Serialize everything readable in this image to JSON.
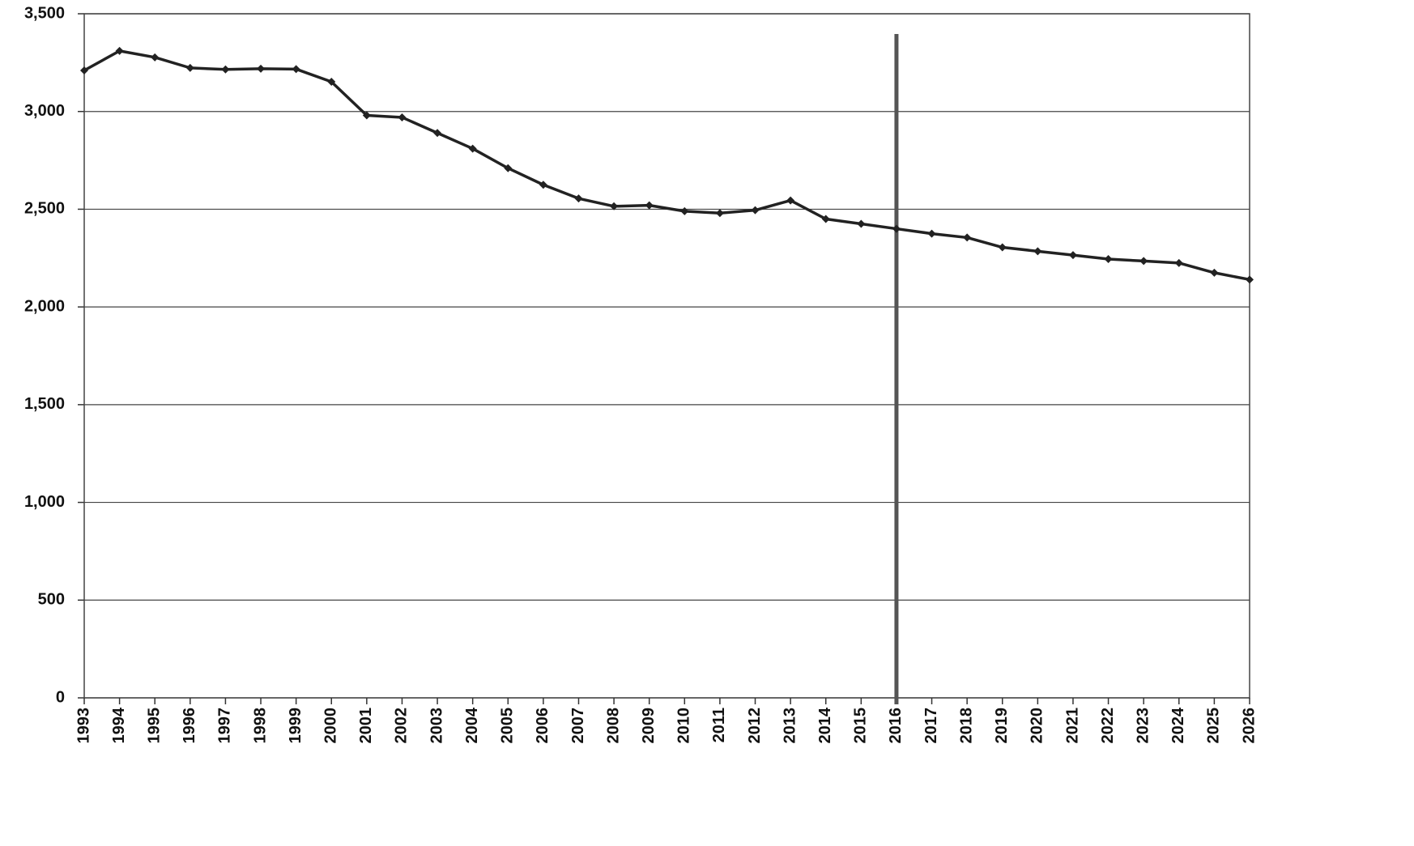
{
  "chart_data": {
    "type": "line",
    "x": [
      1993,
      1994,
      1995,
      1996,
      1997,
      1998,
      1999,
      2000,
      2001,
      2002,
      2003,
      2004,
      2005,
      2006,
      2007,
      2008,
      2009,
      2010,
      2011,
      2012,
      2013,
      2014,
      2015,
      2016,
      2017,
      2018,
      2019,
      2020,
      2021,
      2022,
      2023,
      2024,
      2025,
      2026
    ],
    "series": [
      {
        "color": "#222222",
        "values": [
          3210,
          3310,
          3277,
          3223,
          3215,
          3219,
          3217,
          3152,
          2980,
          2970,
          2890,
          2810,
          2710,
          2625,
          2555,
          2515,
          2520,
          2490,
          2480,
          2495,
          2545,
          2450,
          2425,
          2400,
          2375,
          2355,
          2305,
          2285,
          2265,
          2245,
          2235,
          2225,
          2175,
          2140
        ]
      }
    ],
    "xlim": [
      1993,
      2026
    ],
    "xticks": [
      1993,
      1994,
      1995,
      1996,
      1997,
      1998,
      1999,
      2000,
      2001,
      2002,
      2003,
      2004,
      2005,
      2006,
      2007,
      2008,
      2009,
      2010,
      2011,
      2012,
      2013,
      2014,
      2015,
      2016,
      2017,
      2018,
      2019,
      2020,
      2021,
      2022,
      2023,
      2024,
      2025,
      2026
    ],
    "ylim": [
      0,
      3500
    ],
    "yticks": [
      0,
      500,
      {
        "value": 1000,
        "label": "1,000"
      },
      {
        "value": 1500,
        "label": "1,500"
      },
      {
        "value": 2000,
        "label": "2,000"
      },
      {
        "value": 2500,
        "label": "2,500"
      },
      {
        "value": 3000,
        "label": "3,000"
      },
      {
        "value": 3500,
        "label": "3,500"
      }
    ],
    "grid": true,
    "vline": 2016,
    "vline_color": "#555555"
  }
}
